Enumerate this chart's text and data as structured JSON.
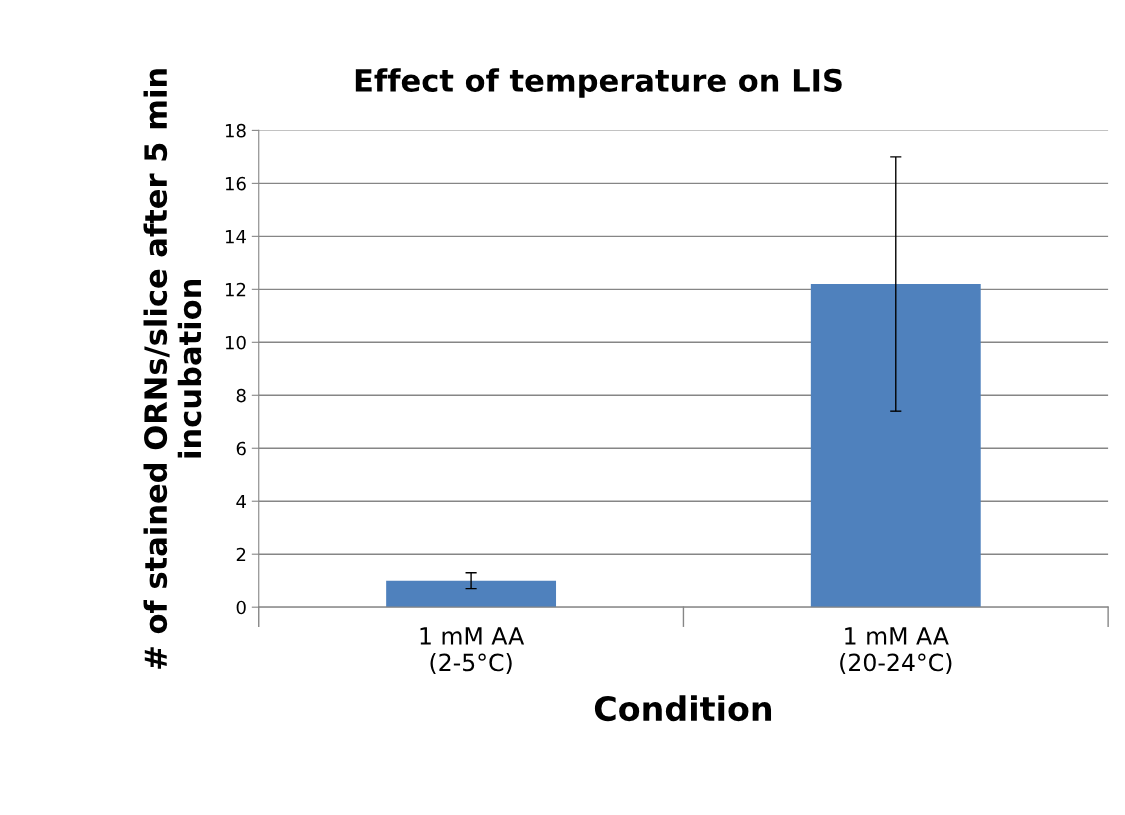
{
  "chart_data": {
    "type": "bar",
    "title": "Effect of temperature on LIS",
    "xlabel": "Condition",
    "ylabel": "# of stained ORNs/slice after 5 min incubation",
    "categories": [
      "1 mM AA\n(2-5°C)",
      "1 mM AA\n(20-24°C)"
    ],
    "values": [
      1.0,
      12.2
    ],
    "errors": [
      0.3,
      4.8
    ],
    "color": "#4f81bd",
    "ylim": [
      0,
      18
    ],
    "yticks": [
      0,
      2,
      4,
      6,
      8,
      10,
      12,
      14,
      16,
      18
    ],
    "grid": "y",
    "legend": false
  }
}
